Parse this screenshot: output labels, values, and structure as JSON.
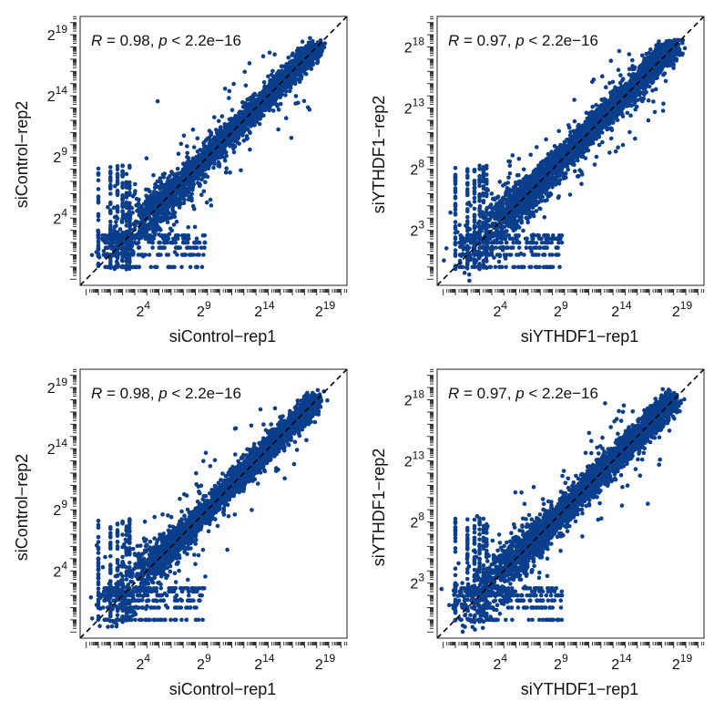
{
  "colors": {
    "points": "#0b3f8c",
    "diagonal": "#000000",
    "frame": "#222222",
    "text": "#111111"
  },
  "chart_data": [
    {
      "type": "scatter",
      "xlabel": "siControl−rep1",
      "ylabel": "siControl−rep2",
      "scale": "log2",
      "x_ticks": [
        {
          "exp": 4,
          "label": "2",
          "sup": "4"
        },
        {
          "exp": 9,
          "label": "2",
          "sup": "9"
        },
        {
          "exp": 14,
          "label": "2",
          "sup": "14"
        },
        {
          "exp": 19,
          "label": "2",
          "sup": "19"
        }
      ],
      "y_ticks": [
        {
          "exp": 4,
          "label": "2",
          "sup": "4"
        },
        {
          "exp": 9,
          "label": "2",
          "sup": "9"
        },
        {
          "exp": 14,
          "label": "2",
          "sup": "14"
        },
        {
          "exp": 19,
          "label": "2",
          "sup": "19"
        }
      ],
      "xlim": [
        -1.5,
        20.5
      ],
      "ylim": [
        -1.5,
        20.5
      ],
      "stat": {
        "R": "R",
        "r_text": " = 0.98, ",
        "p": "p",
        "p_text": " < 2.2e−16"
      },
      "reference_line": "y = x (dashed)",
      "r": 0.98,
      "seed": 11
    },
    {
      "type": "scatter",
      "xlabel": "siYTHDF1−rep1",
      "ylabel": "siYTHDF1−rep2",
      "scale": "log2",
      "x_ticks": [
        {
          "exp": 4,
          "label": "2",
          "sup": "4"
        },
        {
          "exp": 9,
          "label": "2",
          "sup": "9"
        },
        {
          "exp": 14,
          "label": "2",
          "sup": "14"
        },
        {
          "exp": 19,
          "label": "2",
          "sup": "19"
        }
      ],
      "y_ticks": [
        {
          "exp": 3,
          "label": "2",
          "sup": "3"
        },
        {
          "exp": 8,
          "label": "2",
          "sup": "8"
        },
        {
          "exp": 13,
          "label": "2",
          "sup": "13"
        },
        {
          "exp": 18,
          "label": "2",
          "sup": "18"
        }
      ],
      "xlim": [
        -1.5,
        20.5
      ],
      "ylim": [
        -1.5,
        20.5
      ],
      "stat": {
        "R": "R",
        "r_text": " = 0.97, ",
        "p": "p",
        "p_text": " < 2.2e−16"
      },
      "reference_line": "y = x (dashed)",
      "r": 0.97,
      "seed": 23
    },
    {
      "type": "scatter",
      "xlabel": "siControl−rep1",
      "ylabel": "siControl−rep2",
      "scale": "log2",
      "x_ticks": [
        {
          "exp": 4,
          "label": "2",
          "sup": "4"
        },
        {
          "exp": 9,
          "label": "2",
          "sup": "9"
        },
        {
          "exp": 14,
          "label": "2",
          "sup": "14"
        },
        {
          "exp": 19,
          "label": "2",
          "sup": "19"
        }
      ],
      "y_ticks": [
        {
          "exp": 4,
          "label": "2",
          "sup": "4"
        },
        {
          "exp": 9,
          "label": "2",
          "sup": "9"
        },
        {
          "exp": 14,
          "label": "2",
          "sup": "14"
        },
        {
          "exp": 19,
          "label": "2",
          "sup": "19"
        }
      ],
      "xlim": [
        -1.5,
        20.5
      ],
      "ylim": [
        -1.5,
        20.5
      ],
      "stat": {
        "R": "R",
        "r_text": " = 0.98, ",
        "p": "p",
        "p_text": " < 2.2e−16"
      },
      "reference_line": "y = x (dashed)",
      "r": 0.98,
      "seed": 37
    },
    {
      "type": "scatter",
      "xlabel": "siYTHDF1−rep1",
      "ylabel": "siYTHDF1−rep2",
      "scale": "log2",
      "x_ticks": [
        {
          "exp": 4,
          "label": "2",
          "sup": "4"
        },
        {
          "exp": 9,
          "label": "2",
          "sup": "9"
        },
        {
          "exp": 14,
          "label": "2",
          "sup": "14"
        },
        {
          "exp": 19,
          "label": "2",
          "sup": "19"
        }
      ],
      "y_ticks": [
        {
          "exp": 3,
          "label": "2",
          "sup": "3"
        },
        {
          "exp": 8,
          "label": "2",
          "sup": "8"
        },
        {
          "exp": 13,
          "label": "2",
          "sup": "13"
        },
        {
          "exp": 18,
          "label": "2",
          "sup": "18"
        }
      ],
      "xlim": [
        -1.5,
        20.5
      ],
      "ylim": [
        -1.5,
        20.5
      ],
      "stat": {
        "R": "R",
        "r_text": " = 0.97, ",
        "p": "p",
        "p_text": " < 2.2e−16"
      },
      "reference_line": "y = x (dashed)",
      "r": 0.97,
      "seed": 53
    }
  ]
}
